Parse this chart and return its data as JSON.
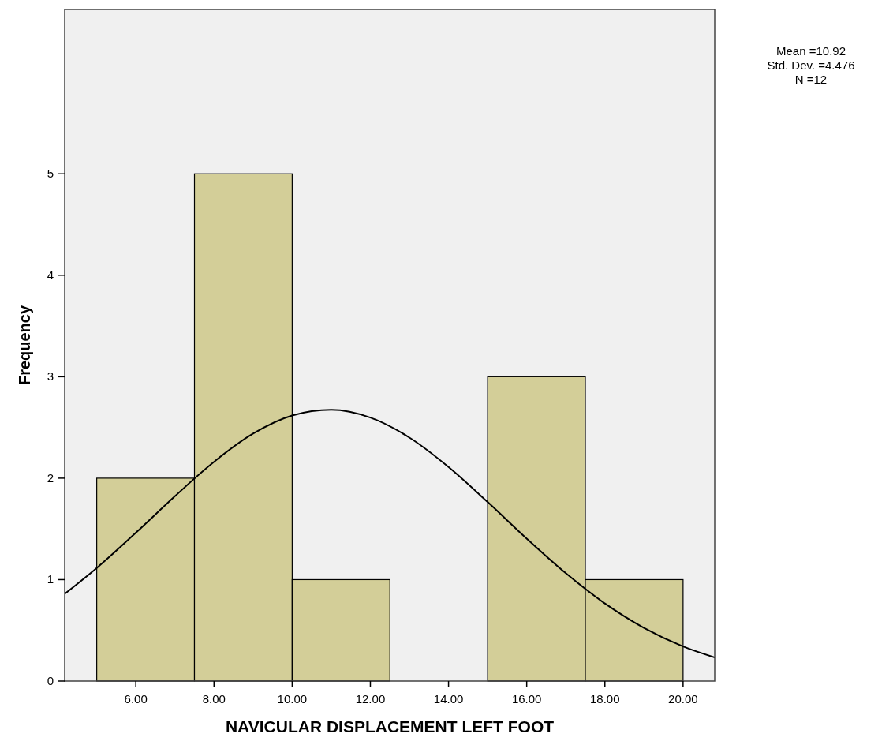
{
  "chart_data": {
    "type": "histogram",
    "xlabel": "NAVICULAR DISPLACEMENT LEFT FOOT",
    "ylabel": "Frequency",
    "bins": [
      5,
      7.5,
      10,
      12.5,
      15,
      17.5,
      20
    ],
    "values": [
      2,
      5,
      1,
      0,
      3,
      1
    ],
    "color": "#d3ce98",
    "series": [
      {
        "type": "line",
        "color": "#000000",
        "x": [
          4.18,
          5,
          6,
          7,
          8,
          9,
          10,
          11,
          12,
          13,
          14,
          15,
          16,
          17,
          18,
          19,
          20,
          20.81
        ],
        "values": [
          0.86,
          1.115,
          1.462,
          1.822,
          2.161,
          2.439,
          2.618,
          2.674,
          2.597,
          2.4,
          2.11,
          1.765,
          1.404,
          1.063,
          0.765,
          0.524,
          0.341,
          0.233
        ]
      }
    ],
    "xlim": [
      4.18,
      20.81
    ],
    "ylim": [
      0,
      6.62
    ],
    "xticks": [
      {
        "value": 6,
        "label": "6.00"
      },
      {
        "value": 8,
        "label": "8.00"
      },
      {
        "value": 10,
        "label": "10.00"
      },
      {
        "value": 12,
        "label": "12.00"
      },
      {
        "value": 14,
        "label": "14.00"
      },
      {
        "value": 16,
        "label": "16.00"
      },
      {
        "value": 18,
        "label": "18.00"
      },
      {
        "value": 20,
        "label": "20.00"
      }
    ],
    "yticks": [
      0,
      1,
      2,
      3,
      4,
      5
    ],
    "annotations": [
      "Mean =10.92",
      "Std. Dev. =4.476",
      "N =12"
    ],
    "grid": false
  }
}
